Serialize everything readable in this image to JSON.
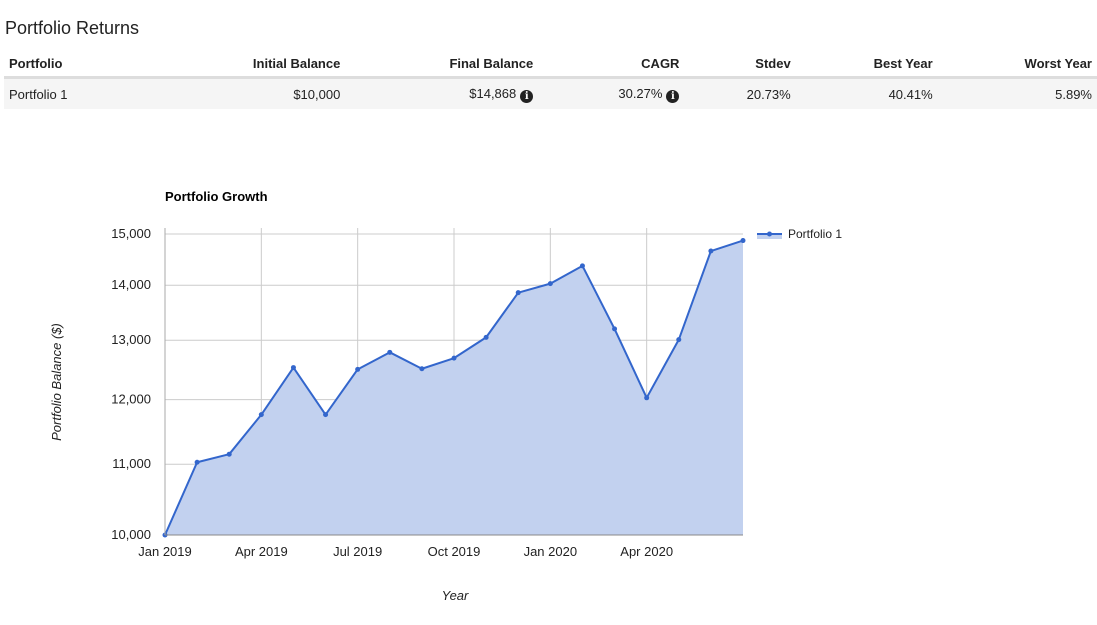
{
  "section_title": "Portfolio Returns",
  "table": {
    "headers": [
      "Portfolio",
      "Initial Balance",
      "Final Balance",
      "CAGR",
      "Stdev",
      "Best Year",
      "Worst Year"
    ],
    "rows": [
      {
        "portfolio": "Portfolio 1",
        "initial_balance": "$10,000",
        "final_balance": "$14,868",
        "cagr": "30.27%",
        "stdev": "20.73%",
        "best_year": "40.41%",
        "worst_year": "5.89%"
      }
    ]
  },
  "info_icon": "info-circle-icon",
  "chart_data": {
    "type": "area",
    "title": "Portfolio Growth",
    "xlabel": "Year",
    "ylabel": "Portfolio Balance ($)",
    "y_scale": "log",
    "ylim": [
      10000,
      15000
    ],
    "yticks": [
      10000,
      11000,
      12000,
      13000,
      14000,
      15000
    ],
    "ytick_labels": [
      "10,000",
      "11,000",
      "12,000",
      "13,000",
      "14,000",
      "15,000"
    ],
    "xticks": [
      {
        "label": "Jan 2019",
        "month_index": 0
      },
      {
        "label": "Apr 2019",
        "month_index": 3
      },
      {
        "label": "Jul 2019",
        "month_index": 6
      },
      {
        "label": "Oct 2019",
        "month_index": 9
      },
      {
        "label": "Jan 2020",
        "month_index": 12
      },
      {
        "label": "Apr 2020",
        "month_index": 15
      }
    ],
    "x_range_months": [
      0,
      18
    ],
    "legend": "top-right",
    "series": [
      {
        "name": "Portfolio 1",
        "color": "#3366cc",
        "fill": "#c2d1ef",
        "values": [
          10000,
          11030,
          11150,
          11760,
          12530,
          11760,
          12500,
          12790,
          12510,
          12690,
          13050,
          13860,
          14030,
          14370,
          13200,
          12030,
          13010,
          14660,
          14868
        ]
      }
    ]
  }
}
